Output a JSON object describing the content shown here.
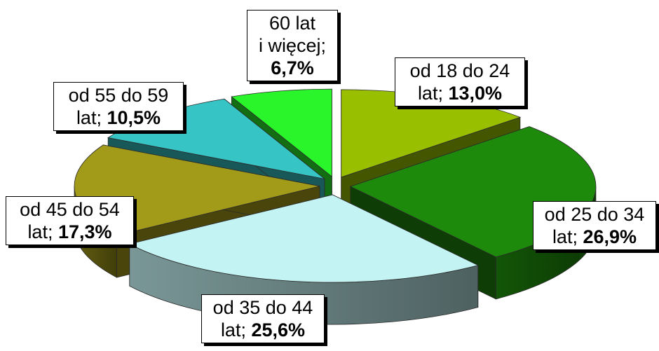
{
  "chart_data": {
    "type": "pie",
    "subtype": "3d-exploded",
    "slices": [
      {
        "line1": "od 18 do 24",
        "line2": "lat;",
        "value_label": "13,0%",
        "value": 13.0,
        "color": "#99c000"
      },
      {
        "line1": "od 25 do 34",
        "line2": "lat;",
        "value_label": "26,9%",
        "value": 26.9,
        "color": "#1e8a0b"
      },
      {
        "line1": "od 35 do 44",
        "line2": "lat;",
        "value_label": "25,6%",
        "value": 25.6,
        "color": "#c4f3f3"
      },
      {
        "line1": "od 45 do 54",
        "line2": "lat;",
        "value_label": "17,3%",
        "value": 17.3,
        "color": "#a29a19"
      },
      {
        "line1": "od 55 do 59",
        "line2": "lat;",
        "value_label": "10,5%",
        "value": 10.5,
        "color": "#36c4c4"
      },
      {
        "line1": "60 lat",
        "line2": "i więcej;",
        "value_label": "6,7%",
        "value": 6.7,
        "color": "#2af52a"
      }
    ],
    "legend": "none"
  }
}
